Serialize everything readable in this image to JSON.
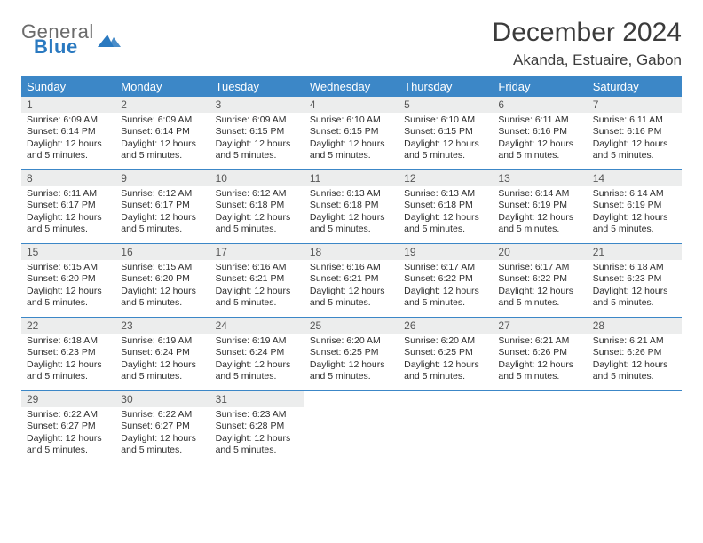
{
  "logo": {
    "general": "General",
    "blue": "Blue"
  },
  "header": {
    "month_title": "December 2024",
    "location": "Akanda, Estuaire, Gabon"
  },
  "calendar": {
    "type": "table",
    "header_bg": "#3c87c7",
    "header_fg": "#ffffff",
    "daynum_bg": "#eceded",
    "row_border": "#3c87c7",
    "daysOfWeek": [
      "Sunday",
      "Monday",
      "Tuesday",
      "Wednesday",
      "Thursday",
      "Friday",
      "Saturday"
    ],
    "weeks": [
      [
        {
          "n": "1",
          "sr": "6:09 AM",
          "ss": "6:14 PM",
          "dl": "12 hours and 5 minutes."
        },
        {
          "n": "2",
          "sr": "6:09 AM",
          "ss": "6:14 PM",
          "dl": "12 hours and 5 minutes."
        },
        {
          "n": "3",
          "sr": "6:09 AM",
          "ss": "6:15 PM",
          "dl": "12 hours and 5 minutes."
        },
        {
          "n": "4",
          "sr": "6:10 AM",
          "ss": "6:15 PM",
          "dl": "12 hours and 5 minutes."
        },
        {
          "n": "5",
          "sr": "6:10 AM",
          "ss": "6:15 PM",
          "dl": "12 hours and 5 minutes."
        },
        {
          "n": "6",
          "sr": "6:11 AM",
          "ss": "6:16 PM",
          "dl": "12 hours and 5 minutes."
        },
        {
          "n": "7",
          "sr": "6:11 AM",
          "ss": "6:16 PM",
          "dl": "12 hours and 5 minutes."
        }
      ],
      [
        {
          "n": "8",
          "sr": "6:11 AM",
          "ss": "6:17 PM",
          "dl": "12 hours and 5 minutes."
        },
        {
          "n": "9",
          "sr": "6:12 AM",
          "ss": "6:17 PM",
          "dl": "12 hours and 5 minutes."
        },
        {
          "n": "10",
          "sr": "6:12 AM",
          "ss": "6:18 PM",
          "dl": "12 hours and 5 minutes."
        },
        {
          "n": "11",
          "sr": "6:13 AM",
          "ss": "6:18 PM",
          "dl": "12 hours and 5 minutes."
        },
        {
          "n": "12",
          "sr": "6:13 AM",
          "ss": "6:18 PM",
          "dl": "12 hours and 5 minutes."
        },
        {
          "n": "13",
          "sr": "6:14 AM",
          "ss": "6:19 PM",
          "dl": "12 hours and 5 minutes."
        },
        {
          "n": "14",
          "sr": "6:14 AM",
          "ss": "6:19 PM",
          "dl": "12 hours and 5 minutes."
        }
      ],
      [
        {
          "n": "15",
          "sr": "6:15 AM",
          "ss": "6:20 PM",
          "dl": "12 hours and 5 minutes."
        },
        {
          "n": "16",
          "sr": "6:15 AM",
          "ss": "6:20 PM",
          "dl": "12 hours and 5 minutes."
        },
        {
          "n": "17",
          "sr": "6:16 AM",
          "ss": "6:21 PM",
          "dl": "12 hours and 5 minutes."
        },
        {
          "n": "18",
          "sr": "6:16 AM",
          "ss": "6:21 PM",
          "dl": "12 hours and 5 minutes."
        },
        {
          "n": "19",
          "sr": "6:17 AM",
          "ss": "6:22 PM",
          "dl": "12 hours and 5 minutes."
        },
        {
          "n": "20",
          "sr": "6:17 AM",
          "ss": "6:22 PM",
          "dl": "12 hours and 5 minutes."
        },
        {
          "n": "21",
          "sr": "6:18 AM",
          "ss": "6:23 PM",
          "dl": "12 hours and 5 minutes."
        }
      ],
      [
        {
          "n": "22",
          "sr": "6:18 AM",
          "ss": "6:23 PM",
          "dl": "12 hours and 5 minutes."
        },
        {
          "n": "23",
          "sr": "6:19 AM",
          "ss": "6:24 PM",
          "dl": "12 hours and 5 minutes."
        },
        {
          "n": "24",
          "sr": "6:19 AM",
          "ss": "6:24 PM",
          "dl": "12 hours and 5 minutes."
        },
        {
          "n": "25",
          "sr": "6:20 AM",
          "ss": "6:25 PM",
          "dl": "12 hours and 5 minutes."
        },
        {
          "n": "26",
          "sr": "6:20 AM",
          "ss": "6:25 PM",
          "dl": "12 hours and 5 minutes."
        },
        {
          "n": "27",
          "sr": "6:21 AM",
          "ss": "6:26 PM",
          "dl": "12 hours and 5 minutes."
        },
        {
          "n": "28",
          "sr": "6:21 AM",
          "ss": "6:26 PM",
          "dl": "12 hours and 5 minutes."
        }
      ],
      [
        {
          "n": "29",
          "sr": "6:22 AM",
          "ss": "6:27 PM",
          "dl": "12 hours and 5 minutes."
        },
        {
          "n": "30",
          "sr": "6:22 AM",
          "ss": "6:27 PM",
          "dl": "12 hours and 5 minutes."
        },
        {
          "n": "31",
          "sr": "6:23 AM",
          "ss": "6:28 PM",
          "dl": "12 hours and 5 minutes."
        },
        {
          "n": "",
          "sr": "",
          "ss": "",
          "dl": "",
          "empty": true
        },
        {
          "n": "",
          "sr": "",
          "ss": "",
          "dl": "",
          "empty": true
        },
        {
          "n": "",
          "sr": "",
          "ss": "",
          "dl": "",
          "empty": true
        },
        {
          "n": "",
          "sr": "",
          "ss": "",
          "dl": "",
          "empty": true
        }
      ]
    ],
    "labels": {
      "sunrise": "Sunrise: ",
      "sunset": "Sunset: ",
      "daylight": "Daylight: "
    }
  }
}
